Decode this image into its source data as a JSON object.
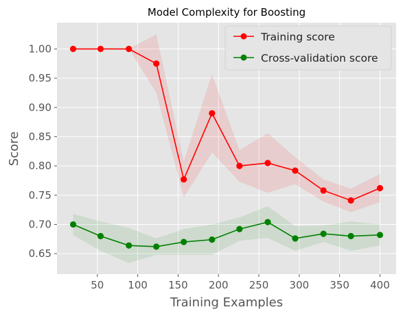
{
  "chart_data": {
    "type": "line",
    "title": "Model Complexity for Boosting",
    "xlabel": "Training Examples",
    "ylabel": "Score",
    "xlim": [
      0,
      420
    ],
    "ylim": [
      0.615,
      1.045
    ],
    "xticks": [
      50,
      100,
      150,
      200,
      250,
      300,
      350,
      400
    ],
    "yticks": [
      0.65,
      0.7,
      0.75,
      0.8,
      0.85,
      0.9,
      0.95,
      1.0
    ],
    "grid": true,
    "legend_position": "top-right",
    "x": [
      20,
      54,
      89,
      123,
      157,
      192,
      226,
      261,
      295,
      330,
      364,
      400
    ],
    "series": [
      {
        "name": "Training score",
        "color": "#ff0000",
        "band_color": "#ff0000",
        "values": [
          1.0,
          1.0,
          1.0,
          0.975,
          0.777,
          0.89,
          0.8,
          0.805,
          0.792,
          0.758,
          0.741,
          0.762
        ],
        "upper": [
          1.0,
          1.0,
          1.0,
          1.025,
          0.808,
          0.957,
          0.827,
          0.856,
          0.815,
          0.777,
          0.761,
          0.786
        ],
        "lower": [
          1.0,
          1.0,
          1.0,
          0.925,
          0.746,
          0.823,
          0.773,
          0.754,
          0.769,
          0.739,
          0.721,
          0.738
        ]
      },
      {
        "name": "Cross-validation score",
        "color": "#008000",
        "band_color": "#008000",
        "values": [
          0.7,
          0.68,
          0.664,
          0.662,
          0.67,
          0.674,
          0.692,
          0.704,
          0.676,
          0.684,
          0.68,
          0.682
        ],
        "upper": [
          0.718,
          0.705,
          0.694,
          0.676,
          0.692,
          0.7,
          0.712,
          0.731,
          0.697,
          0.698,
          0.705,
          0.7
        ],
        "lower": [
          0.682,
          0.655,
          0.634,
          0.648,
          0.648,
          0.648,
          0.672,
          0.677,
          0.655,
          0.67,
          0.655,
          0.664
        ]
      }
    ]
  },
  "colors": {
    "plot_background": "#e5e5e5",
    "grid": "#ffffff",
    "tick_text": "#555555"
  }
}
